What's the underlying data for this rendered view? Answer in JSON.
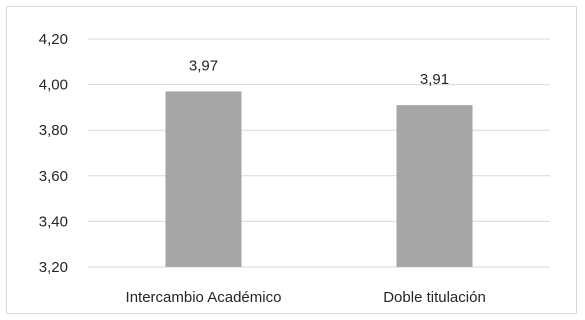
{
  "chart_data": {
    "type": "bar",
    "categories": [
      "Intercambio Académico",
      "Doble titulación"
    ],
    "values": [
      3.97,
      3.91
    ],
    "data_labels": [
      "3,97",
      "3,91"
    ],
    "ylim": [
      3.2,
      4.2
    ],
    "yticks": [
      3.2,
      3.4,
      3.6,
      3.8,
      4.0,
      4.2
    ],
    "ytick_labels": [
      "3,20",
      "3,40",
      "3,60",
      "3,80",
      "4,00",
      "4,20"
    ],
    "grid": true,
    "legend": "none",
    "colors": {
      "bar": "#a6a6a6",
      "grid": "#d9d9d9",
      "text": "#262626"
    }
  }
}
